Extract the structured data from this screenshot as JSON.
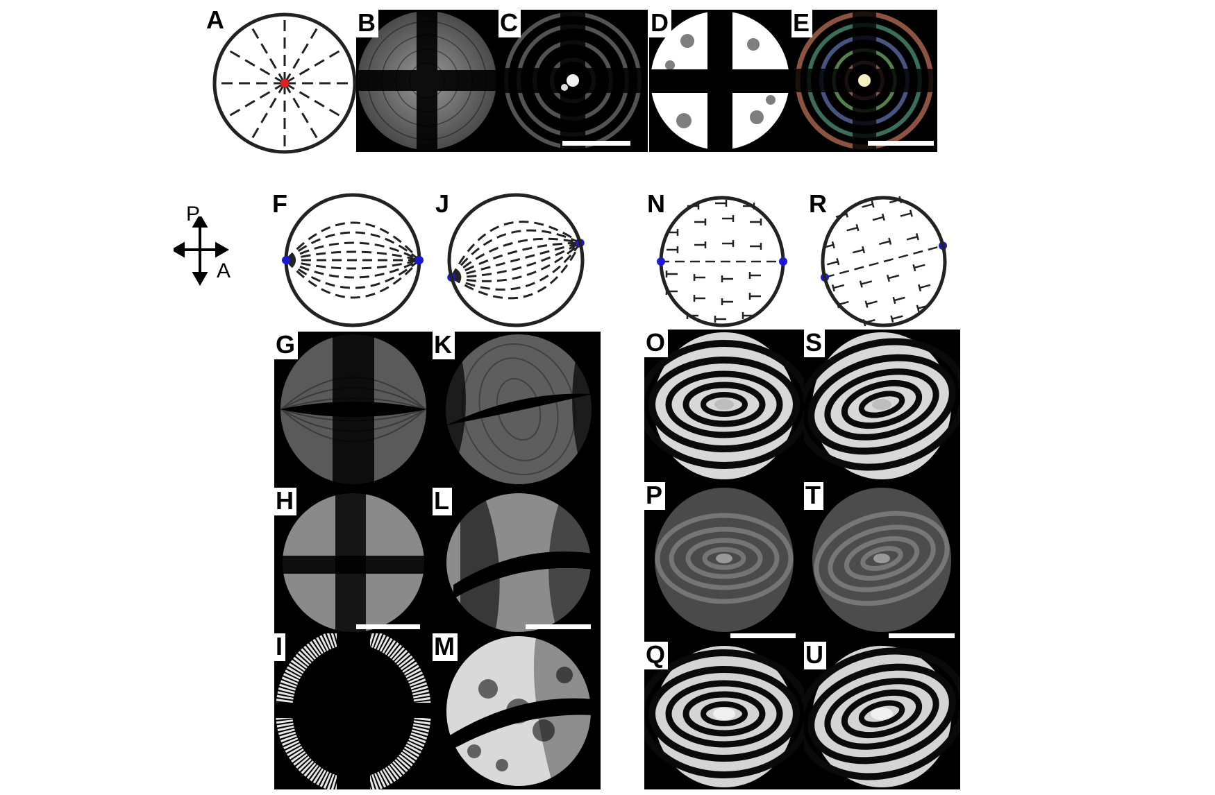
{
  "panels": {
    "A": "A",
    "B": "B",
    "C": "C",
    "D": "D",
    "E": "E",
    "F": "F",
    "G": "G",
    "H": "H",
    "I": "I",
    "J": "J",
    "K": "K",
    "L": "L",
    "M": "M",
    "N": "N",
    "O": "O",
    "P": "P",
    "Q": "Q",
    "R": "R",
    "S": "S",
    "T": "T",
    "U": "U"
  },
  "compass": {
    "polarizer": "P",
    "analyzer": "A"
  },
  "colors": {
    "defect_red": "#e21e1e",
    "defect_blue": "#1a1ad6",
    "background_dark": "#000000"
  }
}
